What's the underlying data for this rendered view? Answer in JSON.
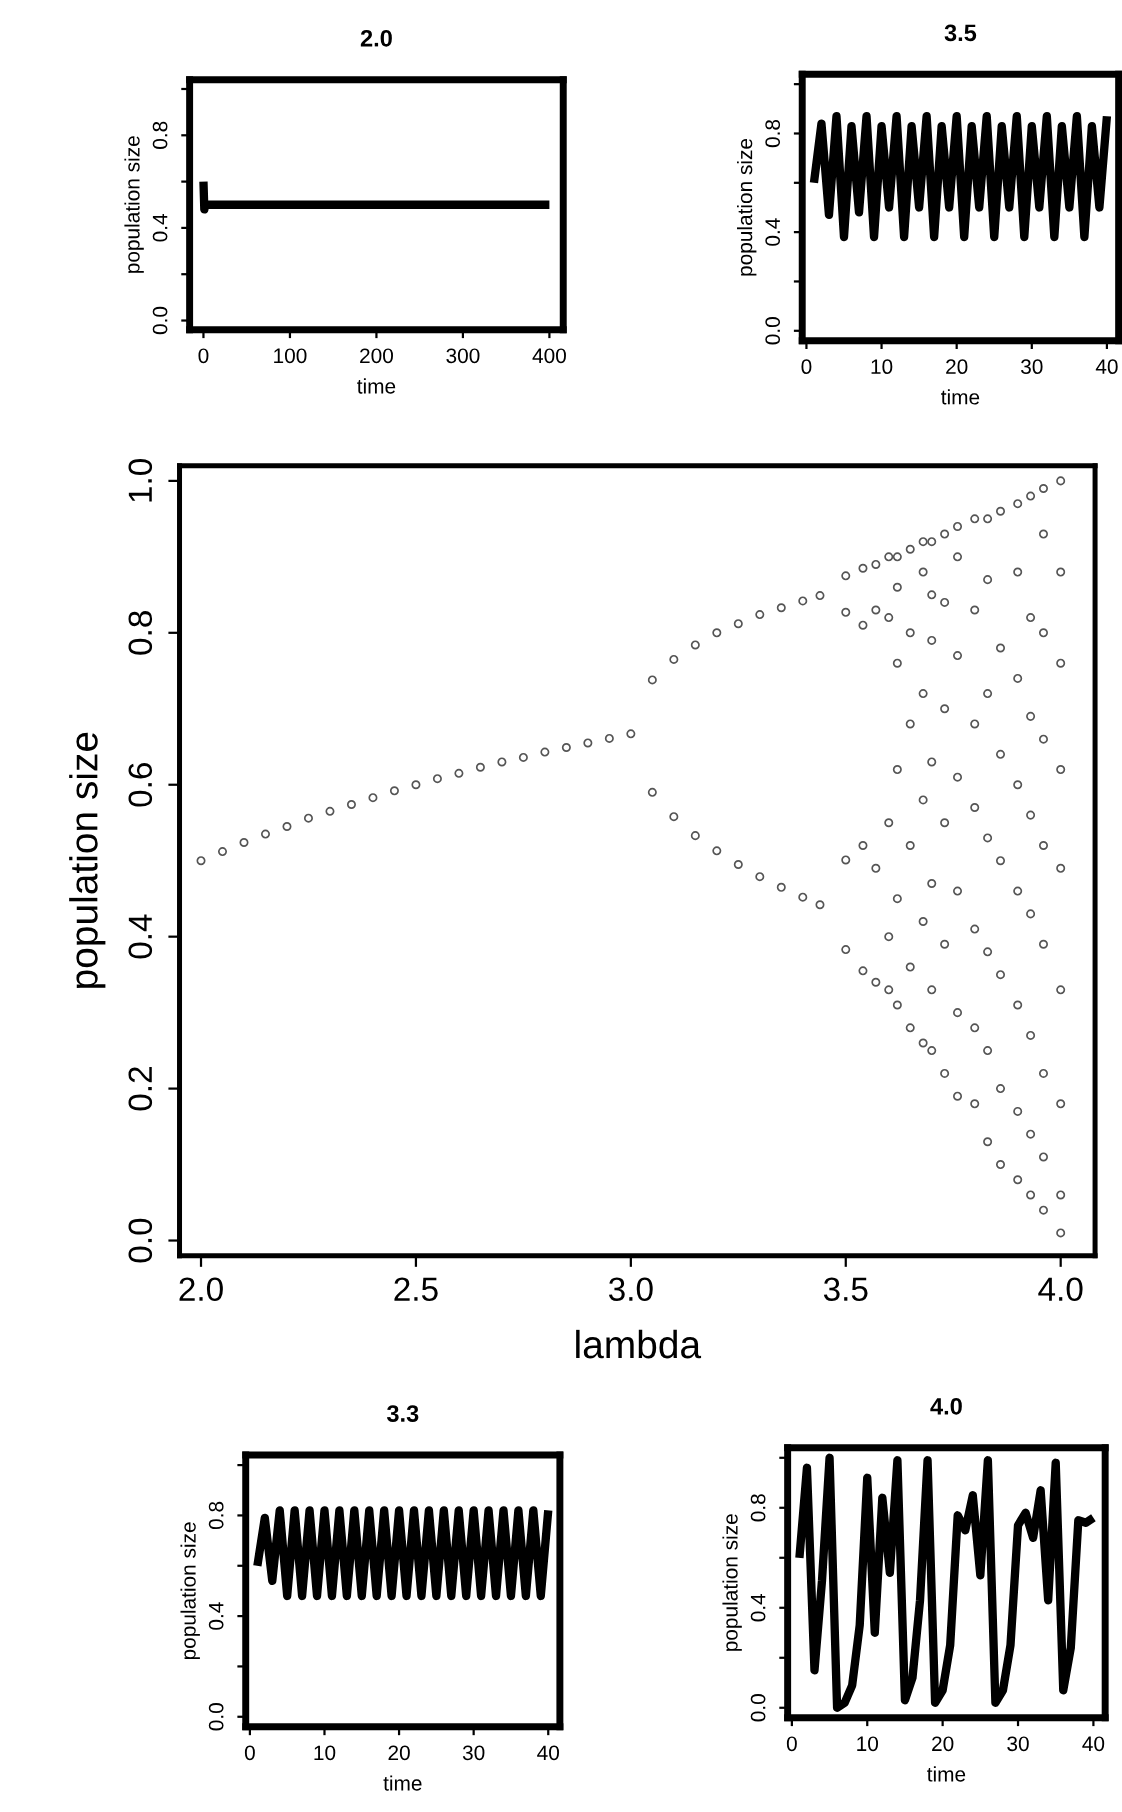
{
  "chart_data": [
    {
      "type": "line",
      "title": "2.0",
      "xlabel": "time",
      "ylabel": "population size",
      "line_style": "solid",
      "marker": "none",
      "series": [
        {
          "color": "#000000",
          "x": [
            0,
            1,
            2,
            400
          ],
          "values": [
            0.6,
            0.48,
            0.5,
            0.5
          ]
        }
      ],
      "xlim": [
        -16,
        416
      ],
      "xticks": [
        0,
        100,
        200,
        300,
        400
      ],
      "ylim": [
        -0.04,
        1.04
      ],
      "yticks": [
        {
          "value": 0,
          "label": "0.0"
        },
        {
          "value": 0.2,
          "label": null
        },
        {
          "value": 0.4,
          "label": "0.4"
        },
        {
          "value": 0.6,
          "label": null
        },
        {
          "value": 0.8,
          "label": "0.8"
        },
        {
          "value": 1.0,
          "label": null
        }
      ]
    },
    {
      "type": "line",
      "title": "3.5",
      "xlabel": "time",
      "ylabel": "population size",
      "line_style": "solid",
      "marker": "none",
      "series": [
        {
          "color": "#000000",
          "x": [
            1,
            2,
            3,
            4,
            5,
            6,
            7,
            8,
            9,
            10,
            11,
            12,
            13,
            14,
            15,
            16,
            17,
            18,
            19,
            20,
            21,
            22,
            23,
            24,
            25,
            26,
            27,
            28,
            29,
            30,
            31,
            32,
            33,
            34,
            35,
            36,
            37,
            38,
            39,
            40
          ],
          "values": [
            0.6,
            0.84,
            0.47,
            0.87,
            0.38,
            0.83,
            0.48,
            0.87,
            0.38,
            0.83,
            0.5,
            0.87,
            0.38,
            0.83,
            0.5,
            0.87,
            0.38,
            0.83,
            0.5,
            0.87,
            0.38,
            0.83,
            0.5,
            0.87,
            0.38,
            0.83,
            0.5,
            0.87,
            0.38,
            0.83,
            0.5,
            0.87,
            0.38,
            0.83,
            0.5,
            0.87,
            0.38,
            0.83,
            0.5,
            0.87
          ]
        }
      ],
      "xlim": [
        -0.56,
        41.56
      ],
      "xticks": [
        0,
        10,
        20,
        30,
        40
      ],
      "ylim": [
        -0.04,
        1.04
      ],
      "yticks": [
        {
          "value": 0,
          "label": "0.0"
        },
        {
          "value": 0.2,
          "label": null
        },
        {
          "value": 0.4,
          "label": "0.4"
        },
        {
          "value": 0.6,
          "label": null
        },
        {
          "value": 0.8,
          "label": "0.8"
        },
        {
          "value": 1.0,
          "label": null
        }
      ]
    },
    {
      "type": "scatter",
      "xlabel": "lambda",
      "ylabel": "population size",
      "marker": "circle",
      "series": [
        {
          "color": "#555555",
          "x": [
            2.0,
            2.05,
            2.1,
            2.15,
            2.2,
            2.25,
            2.3,
            2.35,
            2.4,
            2.45,
            2.5,
            2.55,
            2.6,
            2.65,
            2.7,
            2.75,
            2.8,
            2.85,
            2.9,
            2.95,
            3.0,
            3.05,
            3.05,
            3.1,
            3.1,
            3.15,
            3.15,
            3.2,
            3.2,
            3.25,
            3.25,
            3.3,
            3.3,
            3.35,
            3.35,
            3.4,
            3.4,
            3.44,
            3.44,
            3.5,
            3.5,
            3.5,
            3.5,
            3.54,
            3.54,
            3.54,
            3.54,
            3.57,
            3.57,
            3.57,
            3.57,
            3.6,
            3.6,
            3.6,
            3.6,
            3.6,
            3.62,
            3.62,
            3.62,
            3.62,
            3.62,
            3.62,
            3.65,
            3.65,
            3.65,
            3.65,
            3.65,
            3.65,
            3.68,
            3.68,
            3.68,
            3.68,
            3.68,
            3.68,
            3.7,
            3.7,
            3.7,
            3.7,
            3.7,
            3.7,
            3.7,
            3.73,
            3.73,
            3.73,
            3.73,
            3.73,
            3.73,
            3.76,
            3.76,
            3.76,
            3.76,
            3.76,
            3.76,
            3.76,
            3.8,
            3.8,
            3.8,
            3.8,
            3.8,
            3.8,
            3.8,
            3.83,
            3.83,
            3.83,
            3.83,
            3.83,
            3.83,
            3.83,
            3.86,
            3.86,
            3.86,
            3.86,
            3.86,
            3.86,
            3.86,
            3.9,
            3.9,
            3.9,
            3.9,
            3.9,
            3.9,
            3.9,
            3.9,
            3.93,
            3.93,
            3.93,
            3.93,
            3.93,
            3.93,
            3.93,
            3.93,
            3.96,
            3.96,
            3.96,
            3.96,
            3.96,
            3.96,
            3.96,
            3.96,
            3.96,
            4.0,
            4.0,
            4.0,
            4.0,
            4.0,
            4.0,
            4.0,
            4.0,
            4.0
          ],
          "values": [
            0.5,
            0.512,
            0.524,
            0.535,
            0.545,
            0.556,
            0.565,
            0.574,
            0.583,
            0.592,
            0.6,
            0.608,
            0.615,
            0.623,
            0.63,
            0.636,
            0.643,
            0.649,
            0.655,
            0.661,
            0.667,
            0.738,
            0.59,
            0.765,
            0.558,
            0.784,
            0.533,
            0.8,
            0.513,
            0.812,
            0.495,
            0.824,
            0.479,
            0.833,
            0.465,
            0.842,
            0.452,
            0.849,
            0.442,
            0.383,
            0.501,
            0.827,
            0.875,
            0.355,
            0.52,
            0.81,
            0.885,
            0.34,
            0.49,
            0.83,
            0.89,
            0.33,
            0.4,
            0.55,
            0.82,
            0.9,
            0.31,
            0.45,
            0.62,
            0.76,
            0.86,
            0.9,
            0.28,
            0.36,
            0.52,
            0.68,
            0.8,
            0.91,
            0.26,
            0.42,
            0.58,
            0.72,
            0.88,
            0.92,
            0.25,
            0.33,
            0.47,
            0.63,
            0.79,
            0.85,
            0.92,
            0.22,
            0.39,
            0.55,
            0.7,
            0.84,
            0.93,
            0.19,
            0.3,
            0.46,
            0.61,
            0.77,
            0.9,
            0.94,
            0.18,
            0.28,
            0.41,
            0.57,
            0.68,
            0.83,
            0.95,
            0.13,
            0.25,
            0.38,
            0.53,
            0.72,
            0.87,
            0.95,
            0.1,
            0.2,
            0.35,
            0.5,
            0.64,
            0.78,
            0.96,
            0.08,
            0.17,
            0.31,
            0.46,
            0.6,
            0.74,
            0.88,
            0.97,
            0.06,
            0.14,
            0.27,
            0.43,
            0.56,
            0.69,
            0.82,
            0.98,
            0.04,
            0.11,
            0.22,
            0.39,
            0.52,
            0.66,
            0.8,
            0.93,
            0.99,
            0.01,
            0.06,
            0.18,
            0.33,
            0.49,
            0.62,
            0.76,
            0.88,
            1.0
          ]
        }
      ],
      "xlim": [
        1.95,
        4.08
      ],
      "xticks": [
        {
          "value": 2,
          "label": "2.0"
        },
        {
          "value": 2.5,
          "label": "2.5"
        },
        {
          "value": 3,
          "label": "3.0"
        },
        {
          "value": 3.5,
          "label": "3.5"
        },
        {
          "value": 4,
          "label": "4.0"
        }
      ],
      "ylim": [
        -0.02,
        1.02
      ],
      "yticks": [
        {
          "value": 0,
          "label": "0.0"
        },
        {
          "value": 0.2,
          "label": "0.2"
        },
        {
          "value": 0.4,
          "label": "0.4"
        },
        {
          "value": 0.6,
          "label": "0.6"
        },
        {
          "value": 0.8,
          "label": "0.8"
        },
        {
          "value": 1.0,
          "label": "1.0"
        }
      ]
    },
    {
      "type": "line",
      "title": "3.3",
      "xlabel": "time",
      "ylabel": "population size",
      "line_style": "solid",
      "marker": "none",
      "series": [
        {
          "color": "#000000",
          "x": [
            1,
            2,
            3,
            4,
            5,
            6,
            7,
            8,
            9,
            10,
            11,
            12,
            13,
            14,
            15,
            16,
            17,
            18,
            19,
            20,
            21,
            22,
            23,
            24,
            25,
            26,
            27,
            28,
            29,
            30,
            31,
            32,
            33,
            34,
            35,
            36,
            37,
            38,
            39,
            40
          ],
          "values": [
            0.6,
            0.79,
            0.54,
            0.82,
            0.48,
            0.82,
            0.48,
            0.82,
            0.48,
            0.82,
            0.48,
            0.82,
            0.48,
            0.82,
            0.48,
            0.82,
            0.48,
            0.82,
            0.48,
            0.82,
            0.48,
            0.82,
            0.48,
            0.82,
            0.48,
            0.82,
            0.48,
            0.82,
            0.48,
            0.82,
            0.48,
            0.82,
            0.48,
            0.82,
            0.48,
            0.82,
            0.48,
            0.82,
            0.48,
            0.82
          ]
        }
      ],
      "xlim": [
        -0.56,
        41.56
      ],
      "xticks": [
        0,
        10,
        20,
        30,
        40
      ],
      "ylim": [
        -0.04,
        1.04
      ],
      "yticks": [
        {
          "value": 0,
          "label": "0.0"
        },
        {
          "value": 0.2,
          "label": null
        },
        {
          "value": 0.4,
          "label": "0.4"
        },
        {
          "value": 0.6,
          "label": null
        },
        {
          "value": 0.8,
          "label": "0.8"
        },
        {
          "value": 1.0,
          "label": null
        }
      ]
    },
    {
      "type": "line",
      "title": "4.0",
      "xlabel": "time",
      "ylabel": "population size",
      "line_style": "solid",
      "marker": "none",
      "series": [
        {
          "color": "#000000",
          "x": [
            1,
            2,
            3,
            4,
            5,
            6,
            7,
            8,
            9,
            10,
            11,
            12,
            13,
            14,
            15,
            16,
            17,
            18,
            19,
            20,
            21,
            22,
            23,
            24,
            25,
            26,
            27,
            28,
            29,
            30,
            31,
            32,
            33,
            34,
            35,
            36,
            37,
            38,
            39,
            40
          ],
          "values": [
            0.6,
            0.96,
            0.15,
            0.51,
            1.0,
            0.0,
            0.02,
            0.09,
            0.33,
            0.92,
            0.3,
            0.84,
            0.54,
            0.99,
            0.03,
            0.12,
            0.43,
            0.99,
            0.02,
            0.07,
            0.25,
            0.77,
            0.71,
            0.85,
            0.53,
            0.99,
            0.02,
            0.07,
            0.25,
            0.73,
            0.78,
            0.68,
            0.87,
            0.43,
            0.98,
            0.07,
            0.24,
            0.75,
            0.74,
            0.76
          ]
        }
      ],
      "xlim": [
        -0.56,
        41.56
      ],
      "xticks": [
        0,
        10,
        20,
        30,
        40
      ],
      "ylim": [
        -0.04,
        1.04
      ],
      "yticks": [
        {
          "value": 0,
          "label": "0.0"
        },
        {
          "value": 0.2,
          "label": null
        },
        {
          "value": 0.4,
          "label": "0.4"
        },
        {
          "value": 0.6,
          "label": null
        },
        {
          "value": 0.8,
          "label": "0.8"
        },
        {
          "value": 1.0,
          "label": null
        }
      ]
    }
  ]
}
